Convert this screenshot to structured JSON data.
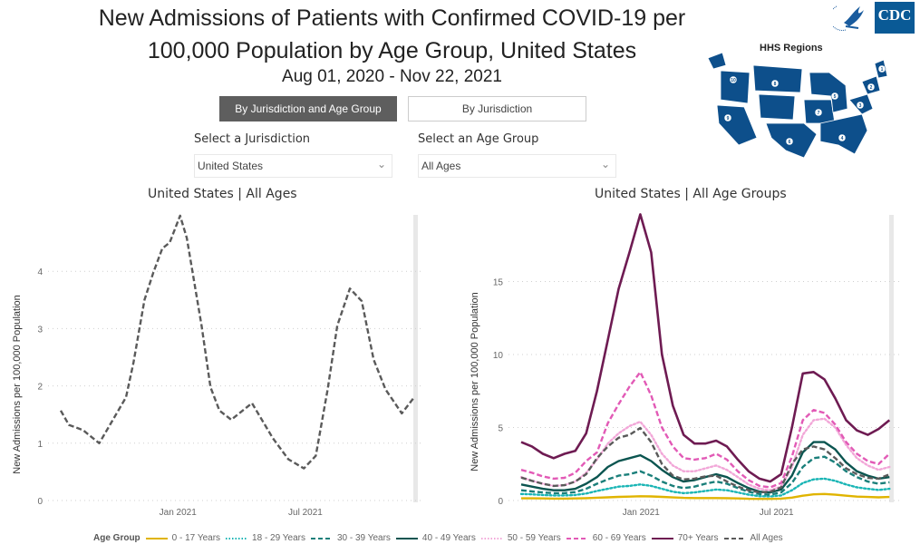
{
  "header": {
    "title_line1": "New Admissions of Patients with Confirmed COVID-19 per",
    "title_line2": "100,000 Population by Age Group, United States",
    "date_range": "Aug 01, 2020 - Nov 22, 2021",
    "cdc_logo_text": "CDC",
    "map_title": "HHS Regions",
    "map_region_labels": [
      "1",
      "2",
      "3",
      "4",
      "5",
      "6",
      "7",
      "8",
      "9",
      "10"
    ]
  },
  "tabs": [
    {
      "label": "By Jurisdiction and Age Group",
      "active": true
    },
    {
      "label": "By Jurisdiction",
      "active": false
    }
  ],
  "filters": {
    "jurisdiction_label": "Select a Jurisdiction",
    "jurisdiction_value": "United States",
    "age_label": "Select an Age Group",
    "age_value": "All Ages"
  },
  "legend": {
    "title": "Age Group"
  },
  "chart_data": [
    {
      "type": "line",
      "title": "United States | All Ages",
      "xlabel": "",
      "ylabel": "New Admissions per 100,000 Population",
      "ylim": [
        0,
        5
      ],
      "yticks": [
        0,
        1,
        2,
        3,
        4
      ],
      "xlim_days": [
        0,
        478
      ],
      "x_origin_date": "2020-08-01",
      "xticks": [
        {
          "label": "Jan 2021",
          "day": 158
        },
        {
          "label": "Jul 2021",
          "day": 330
        }
      ],
      "grid": true,
      "x_days": [
        0,
        11,
        30,
        52,
        88,
        98,
        113,
        125,
        137,
        147,
        161,
        170,
        190,
        202,
        214,
        230,
        258,
        286,
        307,
        328,
        344,
        360,
        373,
        390,
        406,
        422,
        438,
        460,
        476
      ],
      "series": [
        {
          "name": "All Ages",
          "color": "#5a5a5a",
          "dash": "dashed",
          "values": [
            1.57,
            1.32,
            1.23,
            1.0,
            1.8,
            2.4,
            3.5,
            3.98,
            4.4,
            4.5,
            4.97,
            4.58,
            3.05,
            1.98,
            1.57,
            1.41,
            1.7,
            1.09,
            0.72,
            0.56,
            0.78,
            1.94,
            3.05,
            3.7,
            3.48,
            2.46,
            1.94,
            1.52,
            1.79
          ]
        }
      ]
    },
    {
      "type": "line",
      "title": "United States | All Age Groups",
      "xlabel": "",
      "ylabel": "New Admissions per 100,000 Population",
      "ylim": [
        0,
        20
      ],
      "yticks": [
        0,
        5,
        10,
        15
      ],
      "xlim_days": [
        0,
        478
      ],
      "x_origin_date": "2020-08-01",
      "xticks": [
        {
          "label": "Jan 2021",
          "day": 155
        },
        {
          "label": "Jul 2021",
          "day": 330
        }
      ],
      "grid": true,
      "x_days": [
        0,
        14,
        28,
        42,
        56,
        70,
        84,
        98,
        112,
        126,
        140,
        154,
        168,
        182,
        196,
        210,
        224,
        238,
        252,
        266,
        280,
        294,
        308,
        322,
        336,
        350,
        364,
        378,
        392,
        406,
        420,
        434,
        448,
        462,
        476
      ],
      "series": [
        {
          "name": "0 - 17 Years",
          "color": "#e0b400",
          "dash": "solid",
          "values": [
            0.15,
            0.15,
            0.14,
            0.13,
            0.13,
            0.14,
            0.16,
            0.19,
            0.22,
            0.25,
            0.27,
            0.29,
            0.28,
            0.25,
            0.21,
            0.18,
            0.17,
            0.17,
            0.17,
            0.16,
            0.14,
            0.12,
            0.11,
            0.11,
            0.13,
            0.2,
            0.33,
            0.42,
            0.45,
            0.4,
            0.33,
            0.27,
            0.24,
            0.22,
            0.24
          ]
        },
        {
          "name": "18 - 29 Years",
          "color": "#1ab5b5",
          "dash": "dotted",
          "values": [
            0.45,
            0.42,
            0.38,
            0.35,
            0.35,
            0.38,
            0.48,
            0.65,
            0.8,
            0.95,
            1.0,
            1.1,
            1.0,
            0.8,
            0.6,
            0.5,
            0.55,
            0.65,
            0.75,
            0.7,
            0.55,
            0.4,
            0.3,
            0.28,
            0.35,
            0.7,
            1.2,
            1.45,
            1.5,
            1.35,
            1.1,
            0.9,
            0.8,
            0.72,
            0.8
          ]
        },
        {
          "name": "30 - 39 Years",
          "color": "#1a7f7a",
          "dash": "dashed",
          "values": [
            0.7,
            0.62,
            0.55,
            0.5,
            0.5,
            0.58,
            0.8,
            1.15,
            1.45,
            1.7,
            1.8,
            2.0,
            1.7,
            1.3,
            1.0,
            0.85,
            0.95,
            1.15,
            1.3,
            1.15,
            0.85,
            0.6,
            0.45,
            0.4,
            0.55,
            1.2,
            2.3,
            2.9,
            3.0,
            2.6,
            2.0,
            1.6,
            1.3,
            1.15,
            1.25
          ]
        },
        {
          "name": "40 - 49 Years",
          "color": "#0b5550",
          "dash": "solid",
          "values": [
            1.1,
            0.95,
            0.8,
            0.7,
            0.7,
            0.8,
            1.15,
            1.6,
            2.3,
            2.7,
            2.9,
            3.1,
            2.7,
            2.1,
            1.6,
            1.3,
            1.4,
            1.6,
            1.8,
            1.6,
            1.2,
            0.85,
            0.6,
            0.55,
            0.75,
            1.7,
            3.3,
            4.0,
            4.0,
            3.5,
            2.6,
            2.0,
            1.7,
            1.5,
            1.6
          ]
        },
        {
          "name": "50 - 59 Years",
          "color": "#f2a7d8",
          "dash": "dotted",
          "values": [
            1.6,
            1.35,
            1.15,
            1.0,
            1.05,
            1.3,
            1.9,
            2.8,
            3.9,
            4.6,
            5.1,
            5.4,
            4.5,
            3.2,
            2.4,
            2.0,
            2.0,
            2.2,
            2.4,
            2.1,
            1.6,
            1.1,
            0.8,
            0.7,
            0.95,
            2.3,
            4.5,
            5.5,
            5.6,
            5.0,
            3.8,
            2.9,
            2.4,
            2.1,
            2.3
          ]
        },
        {
          "name": "60 - 69 Years",
          "color": "#e25ab6",
          "dash": "dashed",
          "values": [
            2.1,
            1.9,
            1.65,
            1.5,
            1.55,
            1.9,
            2.7,
            3.3,
            5.3,
            6.6,
            7.8,
            8.8,
            7.2,
            5.0,
            3.7,
            2.9,
            2.8,
            2.9,
            3.2,
            2.8,
            2.0,
            1.4,
            1.0,
            0.9,
            1.2,
            3.0,
            5.5,
            6.2,
            6.0,
            5.2,
            4.0,
            3.2,
            2.7,
            2.5,
            3.2
          ]
        },
        {
          "name": "70+ Years",
          "color": "#6e1b52",
          "dash": "solid",
          "values": [
            4.0,
            3.7,
            3.2,
            2.9,
            3.2,
            3.4,
            4.6,
            7.5,
            11.0,
            14.5,
            17.0,
            19.6,
            17.0,
            10.0,
            6.5,
            4.5,
            3.9,
            3.9,
            4.1,
            3.7,
            2.8,
            2.0,
            1.5,
            1.3,
            1.8,
            5.0,
            8.7,
            8.8,
            8.3,
            7.0,
            5.5,
            4.8,
            4.5,
            4.9,
            5.5
          ]
        },
        {
          "name": "All Ages",
          "color": "#5a5a5a",
          "dash": "dashed",
          "values": [
            1.57,
            1.35,
            1.15,
            1.0,
            1.05,
            1.3,
            1.8,
            2.9,
            3.7,
            4.3,
            4.5,
            4.97,
            4.0,
            2.5,
            1.7,
            1.45,
            1.5,
            1.65,
            1.7,
            1.3,
            0.95,
            0.7,
            0.56,
            0.6,
            0.9,
            2.5,
            3.5,
            3.7,
            3.5,
            2.9,
            2.2,
            1.8,
            1.55,
            1.5,
            1.79
          ]
        }
      ]
    }
  ]
}
